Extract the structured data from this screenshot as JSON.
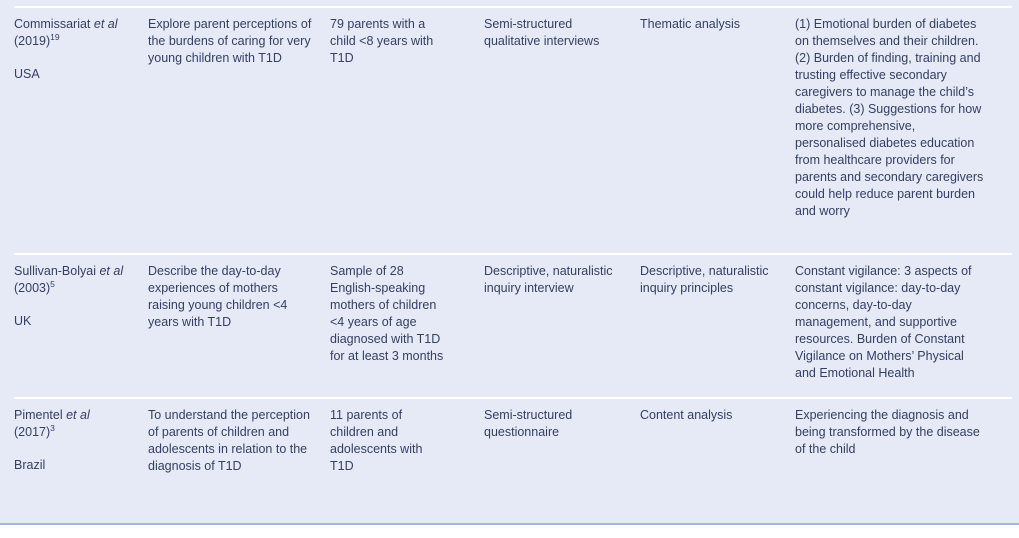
{
  "colors": {
    "table_background": "#e6eaf6",
    "text": "#333f63",
    "row_separator": "#ffffff",
    "bottom_rule": "#a6b7dd"
  },
  "rows": [
    {
      "author": {
        "pre": "Commissariat ",
        "etal": "et al",
        "post": " (2019)",
        "sup": "19"
      },
      "country": "USA",
      "aim": "Explore parent perceptions of the burdens of caring for very young children with T1D",
      "sample": "79 parents with a child <8 years with T1D",
      "method": "Semi-structured qualitative interviews",
      "analysis": "Thematic analysis",
      "findings": "(1) Emotional burden of diabetes on themselves and their children. (2) Burden of finding, training and trusting effective secondary caregivers to manage the child’s diabetes. (3) Suggestions for how more comprehensive, personalised diabetes education from healthcare providers for parents and secondary caregivers could help reduce parent burden and worry"
    },
    {
      "author": {
        "pre": "Sullivan-Bolyai ",
        "etal": "et al",
        "post": " (2003)",
        "sup": "5"
      },
      "country": "UK",
      "aim": "Describe the day-to-day experiences of mothers raising young children <4 years with T1D",
      "sample": "Sample of 28 English-speaking mothers of children <4 years of age diagnosed with T1D for at least 3 months",
      "method": "Descriptive, naturalistic inquiry interview",
      "analysis": "Descriptive, naturalistic inquiry principles",
      "findings": "Constant vigilance: 3 aspects of constant vigilance: day-to-day concerns, day-to-day management, and supportive resources. Burden of Constant Vigilance on Mothers’ Physical and Emotional Health"
    },
    {
      "author": {
        "pre": "Pimentel ",
        "etal": "et al",
        "post": " (2017)",
        "sup": "3"
      },
      "country": "Brazil",
      "aim": "To understand the perception of parents of children and adolescents in relation to the diagnosis of T1D",
      "sample": "11 parents of children and adolescents with T1D",
      "method": "Semi-structured questionnaire",
      "analysis": "Content analysis",
      "findings": "Experiencing the diagnosis and being transformed by the disease of the child"
    }
  ]
}
